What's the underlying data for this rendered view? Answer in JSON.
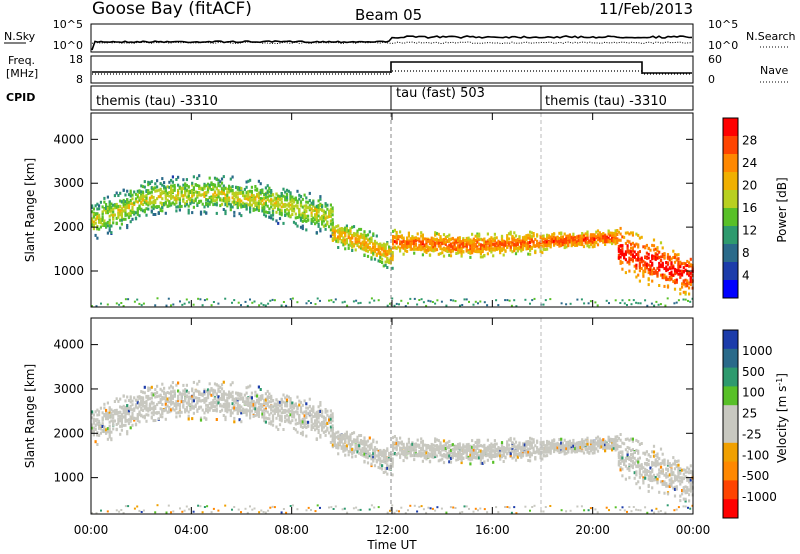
{
  "header": {
    "station": "Goose Bay (fitACF)",
    "beam": "Beam 05",
    "date": "11/Feb/2013"
  },
  "top_panels": {
    "nsky_label": "N.Sky",
    "nsky_ticks": [
      "10^5",
      "10^0"
    ],
    "nsearch_label": "N.Search",
    "nsearch_ticks": [
      "10^5",
      "10^0"
    ],
    "freq_label_1": "Freq.",
    "freq_label_2": "[MHz]",
    "freq_ticks": [
      "18",
      "8"
    ],
    "nave_label": "Nave",
    "nave_ticks": [
      "60",
      "0"
    ],
    "cpid_label": "CPID",
    "cpid_segments": [
      {
        "label": "themis (tau) -3310",
        "start_hour": 0
      },
      {
        "label": "tau (fast) 503",
        "start_hour": 12
      },
      {
        "label": "themis (tau) -3310",
        "start_hour": 18
      }
    ]
  },
  "power_colorbar": {
    "label": "Power [dB]",
    "ticks": [
      "28",
      "24",
      "20",
      "16",
      "12",
      "8",
      "4"
    ],
    "colors": [
      "#ff0000",
      "#ff4400",
      "#ff8800",
      "#f0b000",
      "#b8d020",
      "#58c028",
      "#2e9a6e",
      "#2a6a8a",
      "#1c3caa",
      "#0000ff"
    ]
  },
  "velocity_colorbar": {
    "label": "Velocity [m s",
    "label_sup": "-1",
    "label_end": "]",
    "ticks": [
      "1000",
      "500",
      "100",
      "25",
      "-25",
      "-100",
      "-500",
      "-1000"
    ],
    "colors": [
      "#1c3caa",
      "#2a6a8a",
      "#2e9a6e",
      "#58c028",
      "#c8c8c0",
      "#c8c8c0",
      "#f0a000",
      "#ff8800",
      "#ff4400",
      "#ff0000"
    ]
  },
  "chart_data": [
    {
      "type": "heatmap",
      "name": "Power",
      "ylabel": "Slant Range [km]",
      "ylim": [
        180,
        4600
      ],
      "xlim_hours": [
        0,
        24
      ],
      "y_ticks": [
        1000,
        2000,
        3000,
        4000
      ],
      "x_ticks": [
        "00:00",
        "04:00",
        "08:00",
        "12:00",
        "16:00",
        "20:00",
        "00:00"
      ],
      "colorbar_units": "dB",
      "colorbar_range": [
        0,
        30
      ],
      "echo_bands": [
        {
          "hours": [
            0.0,
            9.6
          ],
          "center_km": [
            2150,
            2700,
            2800,
            2600,
            2250
          ],
          "width_km": 500,
          "power_db": 12
        },
        {
          "hours": [
            9.6,
            12.0
          ],
          "center_km": [
            1900,
            1700,
            1350
          ],
          "width_km": 350,
          "power_db": 16
        },
        {
          "hours": [
            12.0,
            18.0
          ],
          "center_km": [
            1700,
            1600,
            1700
          ],
          "width_km": 300,
          "power_db": 20
        },
        {
          "hours": [
            18.0,
            21.0
          ],
          "center_km": [
            1700,
            1800
          ],
          "width_km": 200,
          "power_db": 22
        },
        {
          "hours": [
            21.0,
            24.0
          ],
          "center_km": [
            1500,
            900
          ],
          "width_km": 600,
          "power_db": 24
        }
      ]
    },
    {
      "type": "heatmap",
      "name": "Velocity",
      "ylabel": "Slant Range [km]",
      "xlabel": "Time UT",
      "ylim": [
        180,
        4600
      ],
      "xlim_hours": [
        0,
        24
      ],
      "y_ticks": [
        1000,
        2000,
        3000,
        4000
      ],
      "x_ticks": [
        "00:00",
        "04:00",
        "08:00",
        "12:00",
        "16:00",
        "20:00",
        "00:00"
      ],
      "colorbar_units": "m s^-1",
      "colorbar_range": [
        -1000,
        1000
      ],
      "dominant_velocity_ms": 0
    }
  ]
}
